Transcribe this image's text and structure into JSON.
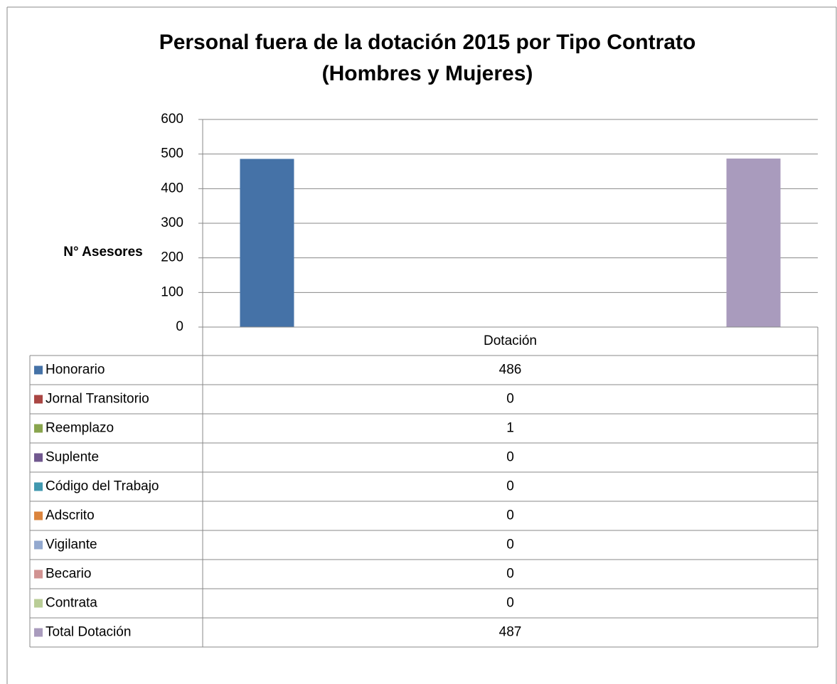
{
  "chart_data": {
    "type": "bar",
    "title": "Personal fuera de la dotación 2015 por Tipo Contrato (Hombres y Mujeres)",
    "y_label": "N° Asesores",
    "categories": [
      "Dotación"
    ],
    "series": [
      {
        "name": "Honorario",
        "color": "#4572a7",
        "values": [
          486
        ]
      },
      {
        "name": "Jornal Transitorio",
        "color": "#aa4643",
        "values": [
          0
        ]
      },
      {
        "name": "Reemplazo",
        "color": "#89a54e",
        "values": [
          1
        ]
      },
      {
        "name": "Suplente",
        "color": "#71588f",
        "values": [
          0
        ]
      },
      {
        "name": "Código del Trabajo",
        "color": "#4198af",
        "values": [
          0
        ]
      },
      {
        "name": "Adscrito",
        "color": "#db843d",
        "values": [
          0
        ]
      },
      {
        "name": "Vigilante",
        "color": "#93a9cf",
        "values": [
          0
        ]
      },
      {
        "name": "Becario",
        "color": "#d19392",
        "values": [
          0
        ]
      },
      {
        "name": "Contrata",
        "color": "#b9cd96",
        "values": [
          0
        ]
      },
      {
        "name": "Total Dotación",
        "color": "#a99bbd",
        "values": [
          487
        ]
      }
    ],
    "ylim": [
      0,
      600
    ],
    "yticks": [
      0,
      100,
      200,
      300,
      400,
      500,
      600
    ],
    "grid": true
  }
}
